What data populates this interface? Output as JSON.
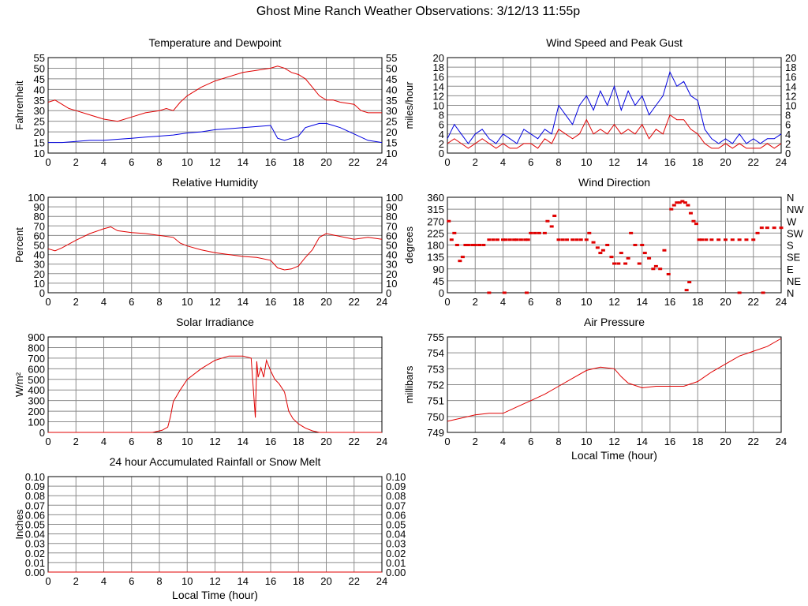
{
  "page": {
    "title": "Ghost Mine Ranch Weather Observations: 3/12/13 11:55p"
  },
  "colors": {
    "red": "#e00000",
    "blue": "#0000e0",
    "grid": "#8c8c8c"
  },
  "chart_data": [
    {
      "id": "temp",
      "type": "line",
      "title": "Temperature and Dewpoint",
      "ylabel": "Fahrenheit",
      "xlabel": "",
      "xlim": [
        0,
        24
      ],
      "ylim": [
        10,
        55
      ],
      "xticks": [
        "0",
        "2",
        "4",
        "6",
        "8",
        "10",
        "12",
        "14",
        "16",
        "18",
        "20",
        "22",
        "24"
      ],
      "yticks": [
        "10",
        "15",
        "20",
        "25",
        "30",
        "35",
        "40",
        "45",
        "50",
        "55"
      ],
      "right_axis_labels": true,
      "grid": true,
      "series": [
        {
          "color": "red",
          "x": [
            0,
            0.5,
            1,
            1.5,
            2,
            3,
            4,
            5,
            6,
            7,
            8,
            8.5,
            9,
            9.5,
            10,
            11,
            12,
            13,
            14,
            15,
            16,
            16.5,
            17,
            17.5,
            18,
            18.5,
            19,
            19.5,
            20,
            20.5,
            21,
            22,
            22.5,
            23,
            24
          ],
          "y": [
            34,
            35,
            33,
            31,
            30,
            28,
            26,
            25,
            27,
            29,
            30,
            31,
            30,
            34,
            37,
            41,
            44,
            46,
            48,
            49,
            50,
            51,
            50,
            48,
            47,
            45,
            41,
            37,
            35,
            35,
            34,
            33,
            30,
            29,
            29
          ]
        },
        {
          "color": "blue",
          "x": [
            0,
            1,
            2,
            3,
            4,
            5,
            6,
            7,
            8,
            9,
            10,
            11,
            12,
            13,
            14,
            15,
            16,
            16.5,
            17,
            17.5,
            18,
            18.5,
            19,
            19.5,
            20,
            20.5,
            21,
            22,
            23,
            24
          ],
          "y": [
            15,
            15,
            15.5,
            16,
            16,
            16.5,
            17,
            17.5,
            18,
            18.5,
            19.5,
            20,
            21,
            21.5,
            22,
            22.5,
            23,
            17,
            16,
            17,
            18,
            22,
            23,
            24,
            24,
            23,
            22,
            19,
            16,
            15
          ]
        }
      ]
    },
    {
      "id": "wind",
      "type": "line",
      "title": "Wind Speed and Peak Gust",
      "ylabel": "miles/hour",
      "xlabel": "",
      "xlim": [
        0,
        24
      ],
      "ylim": [
        0,
        20
      ],
      "xticks": [
        "0",
        "2",
        "4",
        "6",
        "8",
        "10",
        "12",
        "14",
        "16",
        "18",
        "20",
        "22",
        "24"
      ],
      "yticks": [
        "0",
        "2",
        "4",
        "6",
        "8",
        "10",
        "12",
        "14",
        "16",
        "18",
        "20"
      ],
      "right_axis_labels": true,
      "grid": true,
      "series": [
        {
          "color": "blue",
          "x": [
            0,
            0.5,
            1,
            1.5,
            2,
            2.5,
            3,
            3.5,
            4,
            4.5,
            5,
            5.5,
            6,
            6.5,
            7,
            7.5,
            8,
            8.5,
            9,
            9.5,
            10,
            10.5,
            11,
            11.5,
            12,
            12.5,
            13,
            13.5,
            14,
            14.5,
            15,
            15.5,
            16,
            16.5,
            17,
            17.5,
            18,
            18.5,
            19,
            19.5,
            20,
            20.5,
            21,
            21.5,
            22,
            22.5,
            23,
            23.5,
            24
          ],
          "y": [
            3,
            6,
            4,
            2,
            4,
            5,
            3,
            2,
            4,
            3,
            2,
            5,
            4,
            3,
            5,
            4,
            10,
            8,
            6,
            10,
            12,
            9,
            13,
            10,
            14,
            9,
            13,
            10,
            12,
            8,
            10,
            12,
            17,
            14,
            15,
            12,
            11,
            5,
            3,
            2,
            3,
            2,
            4,
            2,
            3,
            2,
            3,
            3,
            4
          ]
        },
        {
          "color": "red",
          "x": [
            0,
            0.5,
            1,
            1.5,
            2,
            2.5,
            3,
            3.5,
            4,
            4.5,
            5,
            5.5,
            6,
            6.5,
            7,
            7.5,
            8,
            8.5,
            9,
            9.5,
            10,
            10.5,
            11,
            11.5,
            12,
            12.5,
            13,
            13.5,
            14,
            14.5,
            15,
            15.5,
            16,
            16.5,
            17,
            17.5,
            18,
            18.5,
            19,
            19.5,
            20,
            20.5,
            21,
            21.5,
            22,
            22.5,
            23,
            23.5,
            24
          ],
          "y": [
            2,
            3,
            2,
            1,
            2,
            3,
            2,
            1,
            2,
            1,
            1,
            2,
            2,
            1,
            3,
            2,
            5,
            4,
            3,
            4,
            7,
            4,
            5,
            4,
            6,
            4,
            5,
            4,
            6,
            3,
            5,
            4,
            8,
            7,
            7,
            5,
            4,
            2,
            1,
            1,
            2,
            1,
            2,
            1,
            1,
            1,
            2,
            1,
            2
          ]
        }
      ]
    },
    {
      "id": "rh",
      "type": "line",
      "title": "Relative Humidity",
      "ylabel": "Percent",
      "xlabel": "",
      "xlim": [
        0,
        24
      ],
      "ylim": [
        0,
        100
      ],
      "xticks": [
        "0",
        "2",
        "4",
        "6",
        "8",
        "10",
        "12",
        "14",
        "16",
        "18",
        "20",
        "22",
        "24"
      ],
      "yticks": [
        "0",
        "10",
        "20",
        "30",
        "40",
        "50",
        "60",
        "70",
        "80",
        "90",
        "100"
      ],
      "right_axis_labels": true,
      "grid": true,
      "series": [
        {
          "color": "red",
          "x": [
            0,
            0.5,
            1,
            2,
            3,
            4,
            4.5,
            5,
            6,
            7,
            8,
            9,
            9.5,
            10,
            11,
            12,
            13,
            14,
            15,
            16,
            16.5,
            17,
            17.5,
            18,
            18.5,
            19,
            19.5,
            20,
            21,
            22,
            23,
            24
          ],
          "y": [
            46,
            44,
            47,
            55,
            62,
            67,
            69,
            65,
            63,
            62,
            60,
            58,
            52,
            49,
            45,
            42,
            40,
            38,
            37,
            34,
            26,
            24,
            25,
            28,
            37,
            45,
            58,
            62,
            59,
            56,
            58,
            56
          ]
        }
      ]
    },
    {
      "id": "winddir",
      "type": "scatter",
      "title": "Wind Direction",
      "ylabel": "degrees",
      "xlabel": "",
      "xlim": [
        0,
        24
      ],
      "ylim": [
        0,
        360
      ],
      "xticks": [
        "0",
        "2",
        "4",
        "6",
        "8",
        "10",
        "12",
        "14",
        "16",
        "18",
        "20",
        "22",
        "24"
      ],
      "yticks": [
        "0",
        "45",
        "90",
        "135",
        "180",
        "225",
        "270",
        "315",
        "360"
      ],
      "right_labels": [
        "N",
        "NE",
        "E",
        "SE",
        "S",
        "SW",
        "W",
        "NW",
        "N"
      ],
      "grid": true,
      "series": [
        {
          "color": "red",
          "x": [
            0.1,
            0.3,
            0.5,
            0.7,
            0.9,
            1.1,
            1.3,
            1.5,
            1.8,
            2,
            2.3,
            2.6,
            3,
            3.3,
            3.6,
            4,
            4.2,
            4.5,
            4.8,
            5,
            5.3,
            5.6,
            5.8,
            6,
            6.3,
            6.6,
            7,
            7.2,
            7.5,
            7.7,
            8,
            8.3,
            8.6,
            9,
            9.3,
            9.6,
            10,
            10.2,
            10.5,
            10.8,
            11,
            11.2,
            11.5,
            11.8,
            12,
            12.3,
            12.5,
            12.8,
            13,
            13.2,
            13.5,
            13.8,
            14,
            14.2,
            14.5,
            14.8,
            15,
            15.3,
            15.6,
            15.9,
            16.1,
            16.3,
            16.5,
            16.7,
            16.9,
            17.1,
            17.3,
            17.5,
            17.7,
            17.9,
            18.1,
            18.3,
            18.6,
            19,
            19.5,
            20,
            20.5,
            21,
            21.5,
            22,
            22.3,
            22.6,
            23,
            23.5,
            24,
            17.2,
            17.4,
            21,
            22.7,
            4.1,
            5.7,
            3
          ],
          "y": [
            270,
            200,
            225,
            180,
            120,
            135,
            180,
            180,
            180,
            180,
            180,
            180,
            200,
            200,
            200,
            200,
            200,
            200,
            200,
            200,
            200,
            200,
            200,
            225,
            225,
            225,
            225,
            270,
            250,
            290,
            200,
            200,
            200,
            200,
            200,
            200,
            200,
            225,
            190,
            170,
            150,
            160,
            180,
            135,
            110,
            110,
            150,
            110,
            130,
            225,
            180,
            110,
            180,
            150,
            130,
            90,
            100,
            90,
            160,
            70,
            315,
            330,
            340,
            340,
            345,
            340,
            330,
            300,
            270,
            260,
            200,
            200,
            200,
            200,
            200,
            200,
            200,
            200,
            200,
            200,
            225,
            245,
            245,
            245,
            245,
            10,
            40,
            0,
            0,
            0,
            0,
            0
          ]
        }
      ]
    },
    {
      "id": "solar",
      "type": "area",
      "title": "Solar Irradiance",
      "ylabel": "W/m2",
      "xlabel": "",
      "xlim": [
        0,
        24
      ],
      "ylim": [
        0,
        900
      ],
      "xticks": [
        "0",
        "2",
        "4",
        "6",
        "8",
        "10",
        "12",
        "14",
        "16",
        "18",
        "20",
        "22",
        "24"
      ],
      "yticks": [
        "0",
        "100",
        "200",
        "300",
        "400",
        "500",
        "600",
        "700",
        "800",
        "900"
      ],
      "right_axis_labels": false,
      "grid": true,
      "series": [
        {
          "color": "red",
          "x": [
            0,
            7.5,
            8.2,
            8.6,
            8.8,
            9,
            9.5,
            10,
            11,
            12,
            13,
            14,
            14.6,
            14.9,
            15,
            15.1,
            15.3,
            15.5,
            15.7,
            16,
            16.3,
            16.6,
            17,
            17.3,
            17.6,
            18,
            18.5,
            19,
            19.5,
            20,
            24
          ],
          "y": [
            0,
            0,
            20,
            50,
            150,
            290,
            400,
            500,
            600,
            680,
            720,
            720,
            700,
            140,
            670,
            520,
            610,
            520,
            680,
            580,
            500,
            460,
            380,
            200,
            130,
            80,
            40,
            15,
            0,
            0,
            0
          ]
        }
      ]
    },
    {
      "id": "pressure",
      "type": "line",
      "title": "Air Pressure",
      "ylabel": "millibars",
      "xlabel": "Local Time (hour)",
      "xlim": [
        0,
        24
      ],
      "ylim": [
        749,
        755
      ],
      "xticks": [
        "0",
        "2",
        "4",
        "6",
        "8",
        "10",
        "12",
        "14",
        "16",
        "18",
        "20",
        "22",
        "24"
      ],
      "yticks": [
        "749",
        "750",
        "751",
        "752",
        "753",
        "754",
        "755"
      ],
      "right_axis_labels": false,
      "grid": true,
      "series": [
        {
          "color": "red",
          "x": [
            0,
            1,
            2,
            3,
            4,
            5,
            6,
            7,
            8,
            9,
            10,
            11,
            12,
            12.5,
            13,
            14,
            15,
            16,
            17,
            18,
            19,
            20,
            21,
            22,
            23,
            24
          ],
          "y": [
            749.7,
            749.9,
            750.1,
            750.2,
            750.2,
            750.6,
            751.0,
            751.4,
            751.9,
            752.4,
            752.9,
            753.1,
            753.0,
            752.5,
            752.1,
            751.8,
            751.9,
            751.9,
            751.9,
            752.2,
            752.8,
            753.3,
            753.8,
            754.1,
            754.4,
            754.9
          ]
        }
      ]
    },
    {
      "id": "rain",
      "type": "line",
      "title": "24 hour Accumulated Rainfall or Snow Melt",
      "ylabel": "Inches",
      "xlabel": "Local Time (hour)",
      "xlim": [
        0,
        24
      ],
      "ylim": [
        0,
        0.1
      ],
      "xticks": [
        "0",
        "2",
        "4",
        "6",
        "8",
        "10",
        "12",
        "14",
        "16",
        "18",
        "20",
        "22",
        "24"
      ],
      "yticks": [
        "0.00",
        "0.01",
        "0.02",
        "0.03",
        "0.04",
        "0.05",
        "0.06",
        "0.07",
        "0.08",
        "0.09",
        "0.10"
      ],
      "right_axis_labels": true,
      "grid": true,
      "series": [
        {
          "color": "red",
          "x": [
            0,
            24
          ],
          "y": [
            0,
            0
          ]
        }
      ]
    }
  ]
}
